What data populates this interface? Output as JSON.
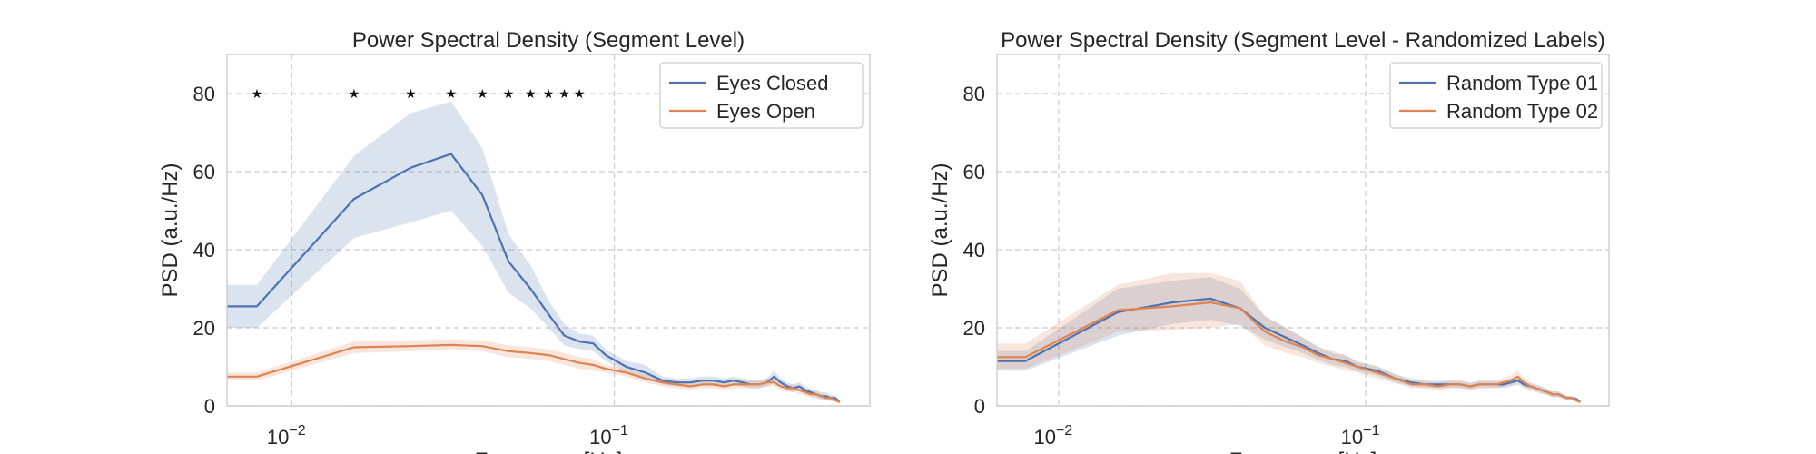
{
  "chart_data": [
    {
      "type": "line",
      "title": "Power Spectral Density (Segment Level)",
      "xlabel": "Frequency [Hz]",
      "ylabel": "PSD (a.u./Hz)",
      "xscale": "log",
      "xlim": [
        0.0063,
        0.62
      ],
      "ylim": [
        0,
        90
      ],
      "yticks": [
        0,
        20,
        40,
        60,
        80
      ],
      "xticks": [
        {
          "value": 0.01,
          "base": "10",
          "exp": "−2"
        },
        {
          "value": 0.1,
          "base": "10",
          "exp": "−1"
        }
      ],
      "grid": true,
      "legend_position": "upper right",
      "significance_marker": "★",
      "significance_y": 80,
      "significance_x": [
        0.0078,
        0.0156,
        0.0234,
        0.0312,
        0.039,
        0.047,
        0.055,
        0.0625,
        0.07,
        0.078
      ],
      "series": [
        {
          "name": "Eyes Closed",
          "color": "#4c72b0",
          "x": [
            0.0063,
            0.0078,
            0.0156,
            0.0234,
            0.0312,
            0.039,
            0.047,
            0.055,
            0.0625,
            0.07,
            0.078,
            0.086,
            0.094,
            0.109,
            0.125,
            0.141,
            0.156,
            0.172,
            0.188,
            0.203,
            0.219,
            0.234,
            0.25,
            0.266,
            0.281,
            0.297,
            0.313,
            0.328,
            0.344,
            0.359,
            0.375,
            0.391,
            0.406,
            0.422,
            0.438,
            0.453,
            0.469,
            0.484,
            0.5
          ],
          "y": [
            25.5,
            25.5,
            53.0,
            61.0,
            64.5,
            54.0,
            37.0,
            30.0,
            23.5,
            18.0,
            16.5,
            16.0,
            13.0,
            10.0,
            8.5,
            6.5,
            6.0,
            6.0,
            6.5,
            6.5,
            6.0,
            6.5,
            6.0,
            5.5,
            5.5,
            6.0,
            7.5,
            6.0,
            5.0,
            4.5,
            5.0,
            4.0,
            3.5,
            3.0,
            2.5,
            2.5,
            2.0,
            2.0,
            1.0
          ],
          "lower": [
            20.0,
            20.0,
            43.0,
            47.0,
            50.0,
            41.0,
            29.0,
            25.0,
            20.0,
            15.5,
            14.5,
            14.0,
            11.5,
            8.5,
            7.0,
            5.5,
            5.0,
            5.0,
            5.5,
            5.5,
            5.0,
            5.5,
            5.0,
            4.5,
            4.5,
            5.0,
            6.0,
            5.0,
            4.0,
            3.5,
            4.0,
            3.0,
            2.5,
            2.0,
            1.5,
            1.5,
            1.2,
            1.2,
            0.5
          ],
          "upper": [
            31.0,
            31.0,
            64.0,
            75.0,
            78.0,
            66.0,
            44.0,
            36.0,
            27.0,
            21.0,
            18.5,
            18.0,
            14.5,
            11.5,
            10.5,
            7.5,
            7.0,
            7.0,
            7.5,
            7.5,
            7.0,
            7.5,
            7.0,
            6.5,
            6.5,
            7.0,
            9.0,
            7.0,
            6.0,
            5.5,
            6.0,
            5.0,
            4.5,
            4.0,
            3.5,
            3.5,
            2.8,
            2.8,
            1.5
          ]
        },
        {
          "name": "Eyes Open",
          "color": "#dd8452",
          "x": [
            0.0063,
            0.0078,
            0.0156,
            0.0234,
            0.0312,
            0.039,
            0.047,
            0.055,
            0.0625,
            0.07,
            0.078,
            0.086,
            0.094,
            0.109,
            0.125,
            0.141,
            0.156,
            0.172,
            0.188,
            0.203,
            0.219,
            0.234,
            0.25,
            0.266,
            0.281,
            0.297,
            0.313,
            0.328,
            0.344,
            0.359,
            0.375,
            0.391,
            0.406,
            0.422,
            0.438,
            0.453,
            0.469,
            0.484,
            0.5
          ],
          "y": [
            7.5,
            7.5,
            15.0,
            15.3,
            15.6,
            15.3,
            14.0,
            13.5,
            13.0,
            12.0,
            11.0,
            10.5,
            9.5,
            8.5,
            7.0,
            6.0,
            5.5,
            5.0,
            5.5,
            5.5,
            5.0,
            5.5,
            5.5,
            5.5,
            5.5,
            6.0,
            6.0,
            5.0,
            4.5,
            4.5,
            4.0,
            3.5,
            3.0,
            3.0,
            2.5,
            2.0,
            2.0,
            1.5,
            1.0
          ],
          "lower": [
            6.5,
            6.5,
            13.5,
            14.0,
            14.5,
            14.0,
            12.5,
            12.0,
            11.5,
            10.5,
            9.5,
            9.0,
            8.5,
            7.5,
            6.0,
            5.0,
            4.5,
            4.2,
            4.5,
            4.5,
            4.2,
            4.5,
            4.5,
            4.5,
            4.5,
            5.0,
            5.0,
            4.0,
            3.5,
            3.5,
            3.0,
            2.5,
            2.2,
            2.2,
            1.8,
            1.4,
            1.4,
            1.0,
            0.5
          ],
          "upper": [
            8.5,
            8.5,
            16.5,
            16.8,
            17.0,
            16.8,
            15.5,
            15.0,
            14.5,
            13.5,
            12.5,
            12.0,
            10.5,
            9.5,
            8.0,
            7.0,
            6.5,
            6.0,
            6.5,
            6.5,
            6.0,
            6.5,
            6.5,
            6.5,
            6.5,
            7.0,
            7.0,
            6.0,
            5.5,
            5.5,
            5.0,
            4.5,
            3.8,
            3.8,
            3.2,
            2.6,
            2.6,
            2.0,
            1.5
          ]
        }
      ]
    },
    {
      "type": "line",
      "title": "Power Spectral Density (Segment Level - Randomized Labels)",
      "xlabel": "Frequency [Hz]",
      "ylabel": "PSD (a.u./Hz)",
      "xscale": "log",
      "xlim": [
        0.0063,
        0.62
      ],
      "ylim": [
        0,
        90
      ],
      "yticks": [
        0,
        20,
        40,
        60,
        80
      ],
      "xticks": [
        {
          "value": 0.01,
          "base": "10",
          "exp": "−2"
        },
        {
          "value": 0.1,
          "base": "10",
          "exp": "−1"
        }
      ],
      "grid": true,
      "legend_position": "upper right",
      "series": [
        {
          "name": "Random Type 01",
          "color": "#4c72b0",
          "x": [
            0.0063,
            0.0078,
            0.0156,
            0.0234,
            0.0312,
            0.039,
            0.047,
            0.055,
            0.0625,
            0.07,
            0.078,
            0.086,
            0.094,
            0.109,
            0.125,
            0.141,
            0.156,
            0.172,
            0.188,
            0.203,
            0.219,
            0.234,
            0.25,
            0.266,
            0.281,
            0.297,
            0.313,
            0.328,
            0.344,
            0.359,
            0.375,
            0.391,
            0.406,
            0.422,
            0.438,
            0.453,
            0.469,
            0.484,
            0.5
          ],
          "y": [
            11.5,
            11.5,
            24.0,
            26.5,
            27.5,
            25.0,
            20.0,
            17.5,
            15.5,
            13.5,
            12.0,
            11.5,
            10.0,
            9.0,
            7.0,
            6.0,
            5.5,
            5.5,
            5.5,
            5.5,
            5.0,
            5.5,
            5.5,
            5.5,
            5.5,
            6.0,
            6.5,
            5.5,
            5.0,
            4.5,
            4.0,
            3.5,
            3.0,
            3.0,
            2.5,
            2.0,
            2.0,
            1.8,
            1.0
          ],
          "lower": [
            9.0,
            9.0,
            18.0,
            21.0,
            22.0,
            20.5,
            17.0,
            15.0,
            13.5,
            11.8,
            10.5,
            10.0,
            8.8,
            7.8,
            6.0,
            5.0,
            4.6,
            4.6,
            4.6,
            4.6,
            4.2,
            4.6,
            4.6,
            4.6,
            4.6,
            5.0,
            5.4,
            4.6,
            4.2,
            3.7,
            3.2,
            2.8,
            2.3,
            2.3,
            1.9,
            1.5,
            1.5,
            1.2,
            0.5
          ],
          "upper": [
            14.0,
            14.0,
            30.0,
            32.0,
            33.0,
            30.0,
            23.0,
            20.0,
            17.5,
            15.2,
            13.5,
            13.0,
            11.2,
            10.2,
            8.0,
            7.0,
            6.4,
            6.4,
            6.4,
            6.4,
            5.8,
            6.4,
            6.4,
            6.4,
            6.4,
            7.0,
            7.6,
            6.4,
            5.8,
            5.3,
            4.8,
            4.2,
            3.7,
            3.7,
            3.1,
            2.5,
            2.5,
            2.4,
            1.5
          ]
        },
        {
          "name": "Random Type 02",
          "color": "#dd8452",
          "x": [
            0.0063,
            0.0078,
            0.0156,
            0.0234,
            0.0312,
            0.039,
            0.047,
            0.055,
            0.0625,
            0.07,
            0.078,
            0.086,
            0.094,
            0.109,
            0.125,
            0.141,
            0.156,
            0.172,
            0.188,
            0.203,
            0.219,
            0.234,
            0.25,
            0.266,
            0.281,
            0.297,
            0.313,
            0.328,
            0.344,
            0.359,
            0.375,
            0.391,
            0.406,
            0.422,
            0.438,
            0.453,
            0.469,
            0.484,
            0.5
          ],
          "y": [
            12.5,
            12.5,
            24.5,
            25.5,
            26.5,
            25.0,
            19.0,
            16.5,
            15.0,
            13.0,
            12.0,
            11.0,
            10.0,
            8.5,
            7.0,
            5.5,
            5.5,
            5.0,
            5.5,
            5.5,
            5.0,
            5.5,
            5.5,
            5.5,
            6.0,
            6.5,
            7.5,
            6.0,
            5.0,
            4.5,
            4.0,
            3.5,
            3.0,
            3.0,
            2.5,
            2.0,
            2.0,
            1.5,
            1.0
          ],
          "lower": [
            9.5,
            9.5,
            19.0,
            19.5,
            20.0,
            21.0,
            15.5,
            13.5,
            12.5,
            11.0,
            10.0,
            9.0,
            8.5,
            7.0,
            5.8,
            4.5,
            4.5,
            4.0,
            4.5,
            4.5,
            4.0,
            4.5,
            4.5,
            4.5,
            4.8,
            5.2,
            6.0,
            4.8,
            4.0,
            3.5,
            3.0,
            2.7,
            2.2,
            2.2,
            1.8,
            1.4,
            1.4,
            1.0,
            0.5
          ],
          "upper": [
            16.0,
            16.0,
            31.0,
            34.0,
            34.0,
            32.0,
            23.0,
            20.0,
            17.5,
            15.0,
            14.0,
            13.0,
            11.5,
            10.0,
            8.2,
            6.5,
            6.5,
            6.0,
            6.8,
            6.8,
            6.0,
            6.5,
            6.5,
            6.5,
            7.2,
            7.8,
            9.0,
            7.2,
            6.0,
            5.5,
            5.0,
            4.3,
            3.8,
            3.8,
            3.2,
            2.6,
            2.6,
            2.0,
            1.5
          ]
        }
      ]
    }
  ]
}
